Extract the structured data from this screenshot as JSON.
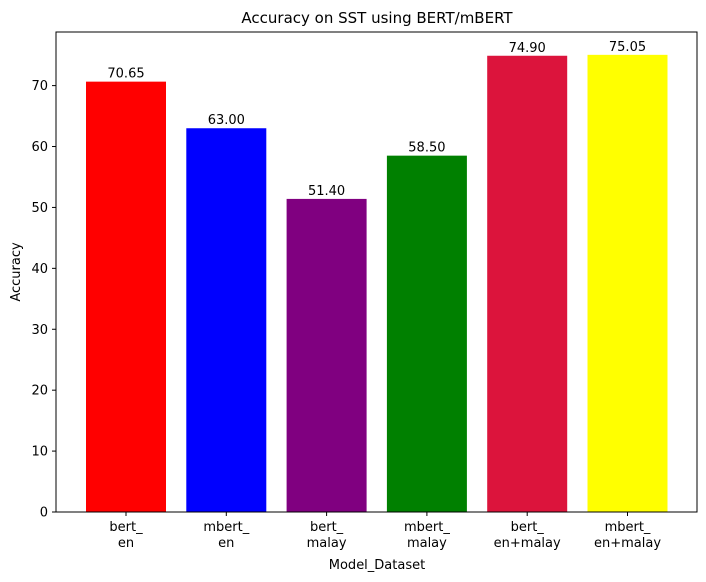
{
  "chart_data": {
    "type": "bar",
    "title": "Accuracy on SST using BERT/mBERT",
    "xlabel": "Model_Dataset",
    "ylabel": "Accuracy",
    "categories": [
      [
        "bert_",
        "en"
      ],
      [
        "mbert_",
        "en"
      ],
      [
        "bert_",
        "malay"
      ],
      [
        "mbert_",
        "malay"
      ],
      [
        "bert_",
        "en+malay"
      ],
      [
        "mbert_",
        "en+malay"
      ]
    ],
    "values": [
      70.65,
      63.0,
      51.4,
      58.5,
      74.9,
      75.05
    ],
    "value_labels": [
      "70.65",
      "63.00",
      "51.40",
      "58.50",
      "74.90",
      "75.05"
    ],
    "colors": [
      "#ff0000",
      "#0000ff",
      "#800080",
      "#008000",
      "#dc143c",
      "#ffff00"
    ],
    "ylim": [
      0,
      78.8
    ],
    "yticks": [
      0,
      10,
      20,
      30,
      40,
      50,
      60,
      70
    ],
    "grid": false,
    "legend": "none"
  }
}
